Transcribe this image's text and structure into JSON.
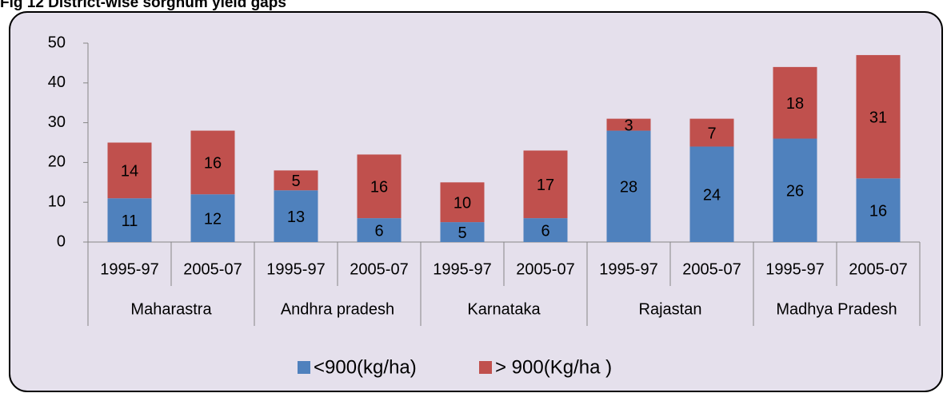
{
  "chart_data": {
    "type": "bar",
    "stacked": true,
    "title": "Fig 12 District-wise sorghum yield gaps",
    "categories": [
      "1995-97",
      "2005-07",
      "1995-97",
      "2005-07",
      "1995-97",
      "2005-07",
      "1995-97",
      "2005-07",
      "1995-97",
      "2005-07"
    ],
    "groups": [
      "Maharastra",
      "Andhra pradesh",
      "Karnataka",
      "Rajastan",
      "Madhya Pradesh"
    ],
    "series": [
      {
        "name": "<900(kg/ha)",
        "color": "#4f81bd",
        "values": [
          11,
          12,
          13,
          6,
          5,
          6,
          28,
          24,
          26,
          16
        ]
      },
      {
        "name": "> 900(Kg/ha )",
        "color": "#c0504d",
        "values": [
          14,
          16,
          5,
          16,
          10,
          17,
          3,
          7,
          18,
          31
        ]
      }
    ],
    "ylim": [
      0,
      50
    ],
    "yticks": [
      0,
      10,
      20,
      30,
      40,
      50
    ],
    "grid": false,
    "legend": "bottom"
  }
}
